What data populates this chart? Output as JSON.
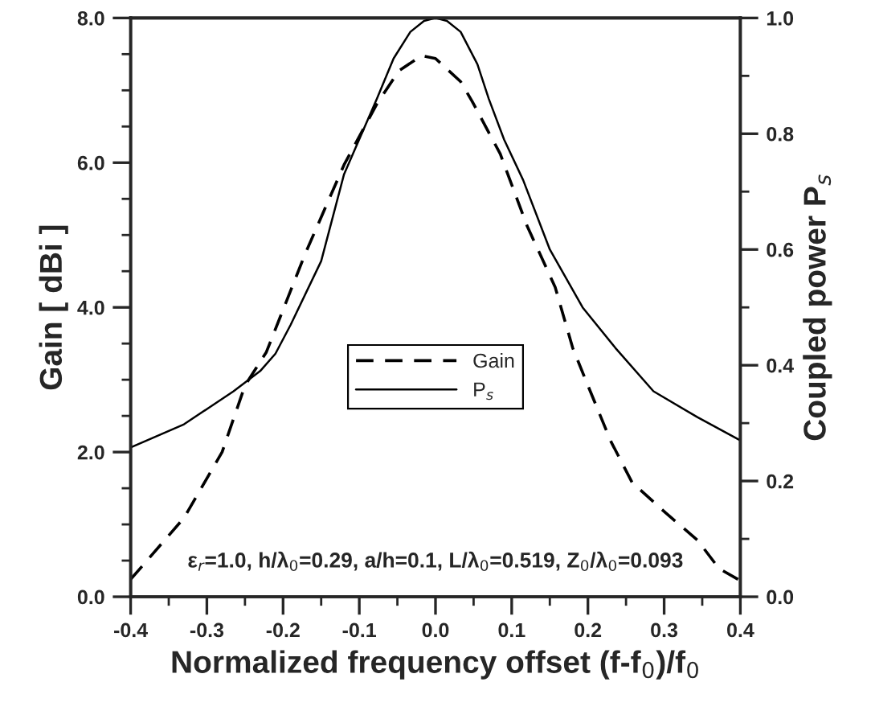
{
  "chart_data": {
    "type": "line",
    "xlabel": "Normalized frequency offset (f-f$_{0}$)/f$_{0}$",
    "ylabel": "Gain [ dBi ]",
    "y2label": "Coupled power P$_{s}$",
    "annotations": [
      "ε$_{r}$=1.0, h/λ$_{0}$=0.29, a/h=0.1, L/λ$_{0}$=0.519, Z$_{0}$/λ$_{0}$=0.093"
    ],
    "legend": "center",
    "grid": false,
    "xlim": [
      -0.4,
      0.4
    ],
    "ylim": [
      0,
      8
    ],
    "y2lim": [
      0,
      1
    ],
    "xticks": [
      {
        "value": -0.4,
        "label": "-0.4"
      },
      {
        "value": -0.35,
        "label": null
      },
      {
        "value": -0.3,
        "label": "-0.3"
      },
      {
        "value": -0.25,
        "label": null
      },
      {
        "value": -0.2,
        "label": "-0.2"
      },
      {
        "value": -0.15,
        "label": null
      },
      {
        "value": -0.1,
        "label": "-0.1"
      },
      {
        "value": -0.05,
        "label": null
      },
      {
        "value": 0,
        "label": "0.0"
      },
      {
        "value": 0.05,
        "label": null
      },
      {
        "value": 0.1,
        "label": "0.1"
      },
      {
        "value": 0.15,
        "label": null
      },
      {
        "value": 0.2,
        "label": "0.2"
      },
      {
        "value": 0.25,
        "label": null
      },
      {
        "value": 0.3,
        "label": "0.3"
      },
      {
        "value": 0.35,
        "label": null
      },
      {
        "value": 0.4,
        "label": "0.4"
      }
    ],
    "yticks": [
      {
        "value": 0,
        "label": "0.0"
      },
      {
        "value": 0.5,
        "label": null
      },
      {
        "value": 1,
        "label": null
      },
      {
        "value": 1.5,
        "label": null
      },
      {
        "value": 2,
        "label": "2.0"
      },
      {
        "value": 2.5,
        "label": null
      },
      {
        "value": 3,
        "label": null
      },
      {
        "value": 3.5,
        "label": null
      },
      {
        "value": 4,
        "label": "4.0"
      },
      {
        "value": 4.5,
        "label": null
      },
      {
        "value": 5,
        "label": null
      },
      {
        "value": 5.5,
        "label": null
      },
      {
        "value": 6,
        "label": "6.0"
      },
      {
        "value": 6.5,
        "label": null
      },
      {
        "value": 7,
        "label": null
      },
      {
        "value": 7.5,
        "label": null
      },
      {
        "value": 8,
        "label": "8.0"
      }
    ],
    "y2ticks": [
      {
        "value": 0,
        "label": "0.0"
      },
      {
        "value": 0.1,
        "label": null
      },
      {
        "value": 0.2,
        "label": "0.2"
      },
      {
        "value": 0.3,
        "label": null
      },
      {
        "value": 0.4,
        "label": "0.4"
      },
      {
        "value": 0.5,
        "label": null
      },
      {
        "value": 0.6,
        "label": "0.6"
      },
      {
        "value": 0.7,
        "label": null
      },
      {
        "value": 0.8,
        "label": "0.8"
      },
      {
        "value": 0.9,
        "label": null
      },
      {
        "value": 1,
        "label": "1.0"
      }
    ],
    "series": [
      {
        "name": "Gain",
        "color": "#000000",
        "line_style": "dashed",
        "axis": "y",
        "x": [
          -0.4,
          -0.33,
          -0.28,
          -0.25,
          -0.222,
          -0.171,
          -0.12,
          -0.077,
          -0.048,
          -0.018,
          0.0,
          0.033,
          0.048,
          0.085,
          0.12,
          0.157,
          0.18,
          0.2,
          0.23,
          0.258,
          0.302,
          0.344,
          0.372,
          0.397
        ],
        "values": [
          0.24,
          1.09,
          2.0,
          2.92,
          3.38,
          4.74,
          5.97,
          6.81,
          7.27,
          7.48,
          7.44,
          7.12,
          6.85,
          6.12,
          5.13,
          4.28,
          3.44,
          2.92,
          2.15,
          1.58,
          1.16,
          0.78,
          0.39,
          0.24
        ]
      },
      {
        "name": "P$_{s}$",
        "color": "#000000",
        "line_style": "solid",
        "axis": "y2",
        "x": [
          -0.4,
          -0.33,
          -0.265,
          -0.23,
          -0.21,
          -0.19,
          -0.15,
          -0.12,
          -0.077,
          -0.055,
          -0.033,
          -0.015,
          0.0,
          0.015,
          0.033,
          0.055,
          0.07,
          0.09,
          0.115,
          0.15,
          0.193,
          0.236,
          0.286,
          0.344,
          0.4
        ],
        "values": [
          0.258,
          0.298,
          0.355,
          0.39,
          0.42,
          0.47,
          0.58,
          0.73,
          0.86,
          0.93,
          0.976,
          0.995,
          1.0,
          0.995,
          0.976,
          0.92,
          0.86,
          0.79,
          0.72,
          0.6,
          0.5,
          0.43,
          0.355,
          0.31,
          0.27
        ]
      }
    ]
  }
}
